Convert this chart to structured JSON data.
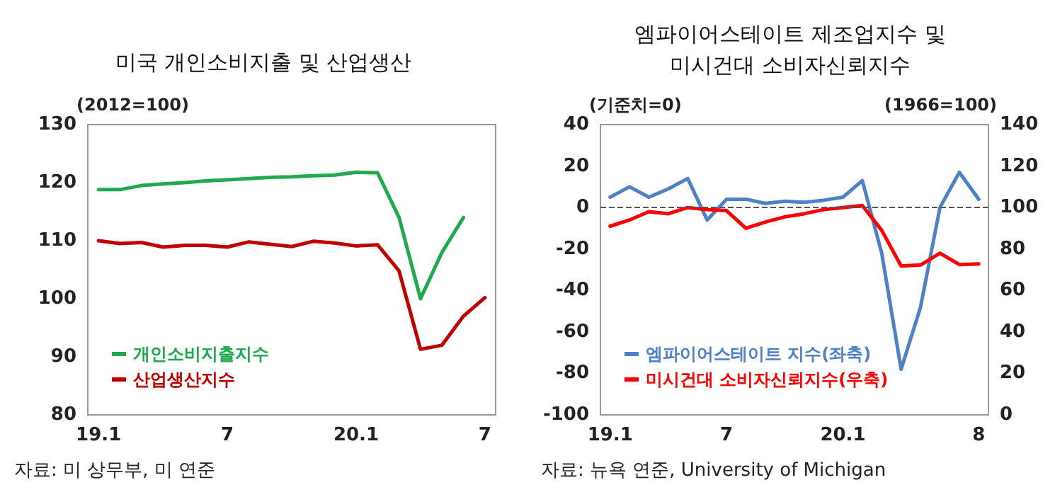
{
  "chart_data": [
    {
      "type": "line",
      "title": "미국 개인소비지출 및 산업생산",
      "categories": [
        "19.1",
        null,
        null,
        null,
        null,
        null,
        "7",
        null,
        null,
        null,
        null,
        null,
        "20.1",
        null,
        null,
        null,
        null,
        null,
        "7"
      ],
      "series": [
        {
          "name": "개인소비지출지수",
          "color": "#1faa4e",
          "values": [
            118.8,
            118.8,
            119.5,
            119.8,
            120,
            120.3,
            120.5,
            120.7,
            120.9,
            121,
            121.2,
            121.3,
            121.8,
            121.7,
            114,
            100,
            108,
            114,
            null
          ]
        },
        {
          "name": "산업생산지수",
          "color": "#c00000",
          "values": [
            110,
            109.5,
            109.7,
            108.9,
            109.2,
            109.2,
            108.9,
            109.8,
            109.4,
            109,
            109.9,
            109.6,
            109.1,
            109.3,
            104.8,
            91.3,
            92,
            97,
            100.2
          ]
        }
      ],
      "ylim": [
        80,
        130
      ],
      "yticks": [
        80,
        90,
        100,
        110,
        120,
        130
      ],
      "legend": "bottom left",
      "marker": "none",
      "line_style": "solid",
      "annotations": [
        "(2012=100)",
        "자료: 미 상무부, 미 연준"
      ]
    },
    {
      "type": "line",
      "title": "엠파이어스테이트 제조업지수 및\n미시건대 소비자신뢰지수",
      "categories": [
        "19.1",
        null,
        null,
        null,
        null,
        null,
        "7",
        null,
        null,
        null,
        null,
        null,
        "20.1",
        null,
        null,
        null,
        null,
        null,
        null,
        "8"
      ],
      "series": [
        {
          "name": "엠파이어스테이트 지수(좌축)",
          "color": "#4f81c7",
          "values": [
            5,
            10,
            5,
            9,
            14,
            -6,
            4,
            4,
            2,
            3,
            2.5,
            3.5,
            5,
            13,
            -22,
            -78,
            -48,
            0,
            17,
            4
          ]
        },
        {
          "name": "미시건대 소비자신뢰지수(우축)",
          "color": "#ff0000",
          "axis": "y2",
          "values": [
            91,
            94,
            98,
            97,
            100,
            99,
            98.5,
            90,
            93,
            95.5,
            97,
            99,
            100,
            101,
            89,
            71.8,
            72.3,
            78,
            72.5,
            72.8
          ]
        }
      ],
      "ylim": [
        -100,
        40
      ],
      "yticks": [
        -100,
        -80,
        -60,
        -40,
        -20,
        0,
        20,
        40
      ],
      "y2lim": [
        0,
        140
      ],
      "y2ticks": [
        0,
        20,
        40,
        60,
        80,
        100,
        120,
        140
      ],
      "ref_lines": [
        {
          "axis": "y",
          "value": 0,
          "color": "#555555",
          "line_style": "dashed"
        }
      ],
      "legend": "bottom left",
      "marker": "none",
      "line_style": "solid",
      "annotations": [
        "(기준치=0)",
        "(1966=100)",
        "자료: 뉴욕 연준, University of Michigan"
      ]
    }
  ]
}
